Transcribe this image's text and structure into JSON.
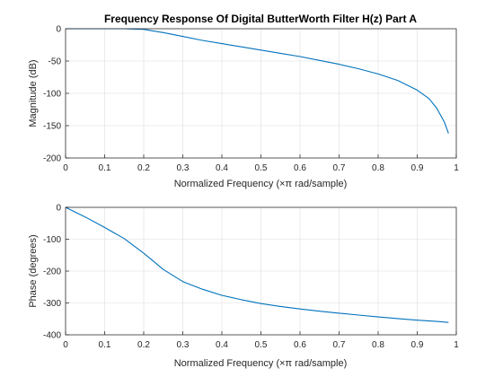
{
  "chart_data": [
    {
      "type": "line",
      "title": "Frequency Response Of Digital ButterWorth Filter H(z) Part A",
      "xlabel": "Normalized Frequency  (×π rad/sample)",
      "ylabel": "Magnitude (dB)",
      "xlim": [
        0,
        1
      ],
      "ylim": [
        -200,
        0
      ],
      "xticks": [
        "0",
        "0.1",
        "0.2",
        "0.3",
        "0.4",
        "0.5",
        "0.6",
        "0.7",
        "0.8",
        "0.9",
        "1"
      ],
      "yticks": [
        "0",
        "-50",
        "-100",
        "-150",
        "-200"
      ],
      "grid": true,
      "color": "#0072bd",
      "series": [
        {
          "x": [
            0,
            0.05,
            0.1,
            0.15,
            0.18,
            0.2,
            0.22,
            0.25,
            0.3,
            0.35,
            0.4,
            0.45,
            0.5,
            0.55,
            0.6,
            0.65,
            0.7,
            0.75,
            0.8,
            0.85,
            0.9,
            0.93,
            0.95,
            0.97,
            0.98
          ],
          "y": [
            0,
            0,
            0,
            0,
            -0.5,
            -1,
            -3,
            -6,
            -12,
            -18,
            -23,
            -28,
            -33,
            -38,
            -43,
            -49,
            -55,
            -62,
            -70,
            -80,
            -95,
            -108,
            -123,
            -145,
            -162
          ]
        }
      ]
    },
    {
      "type": "line",
      "title": "",
      "xlabel": "Normalized Frequency  (×π rad/sample)",
      "ylabel": "Phase (degrees)",
      "xlim": [
        0,
        1
      ],
      "ylim": [
        -400,
        0
      ],
      "xticks": [
        "0",
        "0.1",
        "0.2",
        "0.3",
        "0.4",
        "0.5",
        "0.6",
        "0.7",
        "0.8",
        "0.9",
        "1"
      ],
      "yticks": [
        "0",
        "-100",
        "-200",
        "-300",
        "-400"
      ],
      "grid": true,
      "color": "#0072bd",
      "series": [
        {
          "x": [
            0,
            0.05,
            0.1,
            0.15,
            0.2,
            0.25,
            0.3,
            0.35,
            0.4,
            0.45,
            0.5,
            0.55,
            0.6,
            0.65,
            0.7,
            0.75,
            0.8,
            0.85,
            0.9,
            0.95,
            0.98
          ],
          "y": [
            0,
            -30,
            -63,
            -98,
            -144,
            -195,
            -233,
            -257,
            -276,
            -290,
            -302,
            -311,
            -319,
            -326,
            -332,
            -338,
            -344,
            -349,
            -354,
            -358,
            -361
          ]
        }
      ]
    }
  ]
}
